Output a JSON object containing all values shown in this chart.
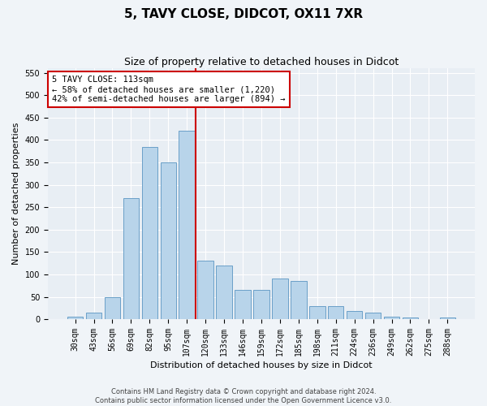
{
  "title": "5, TAVY CLOSE, DIDCOT, OX11 7XR",
  "subtitle": "Size of property relative to detached houses in Didcot",
  "xlabel": "Distribution of detached houses by size in Didcot",
  "ylabel": "Number of detached properties",
  "footer_line1": "Contains HM Land Registry data © Crown copyright and database right 2024.",
  "footer_line2": "Contains public sector information licensed under the Open Government Licence v3.0.",
  "categories": [
    "30sqm",
    "43sqm",
    "56sqm",
    "69sqm",
    "82sqm",
    "95sqm",
    "107sqm",
    "120sqm",
    "133sqm",
    "146sqm",
    "159sqm",
    "172sqm",
    "185sqm",
    "198sqm",
    "211sqm",
    "224sqm",
    "236sqm",
    "249sqm",
    "262sqm",
    "275sqm",
    "288sqm"
  ],
  "values": [
    5,
    15,
    50,
    270,
    385,
    350,
    420,
    130,
    120,
    65,
    65,
    90,
    85,
    30,
    30,
    18,
    14,
    5,
    4,
    0,
    4
  ],
  "bar_color": "#b8d4ea",
  "bar_edge_color": "#6aa0c8",
  "vline_color": "#cc0000",
  "vline_x": 6.46,
  "annotation_box_color": "#ffffff",
  "annotation_box_edge_color": "#cc0000",
  "annotation_title": "5 TAVY CLOSE: 113sqm",
  "annotation_line1": "← 58% of detached houses are smaller (1,220)",
  "annotation_line2": "42% of semi-detached houses are larger (894) →",
  "ylim": [
    0,
    560
  ],
  "yticks": [
    0,
    50,
    100,
    150,
    200,
    250,
    300,
    350,
    400,
    450,
    500,
    550
  ],
  "fig_bg": "#f0f4f8",
  "ax_bg": "#e8eef4",
  "grid_color": "#ffffff",
  "title_fontsize": 11,
  "subtitle_fontsize": 9,
  "ylabel_fontsize": 8,
  "xlabel_fontsize": 8,
  "tick_fontsize": 7,
  "annotation_fontsize": 7.5,
  "footer_fontsize": 6
}
